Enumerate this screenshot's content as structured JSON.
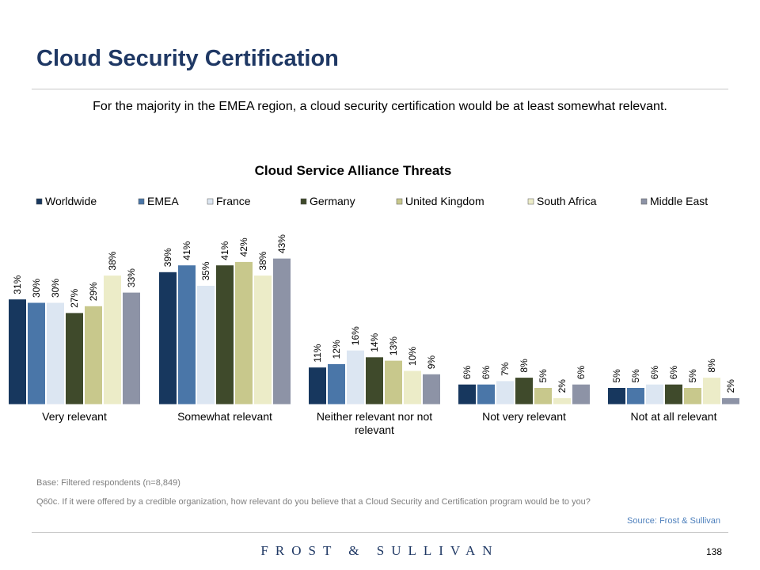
{
  "header": {
    "title": "Cloud Security Certification",
    "subtitle": "For the majority in the EMEA region, a cloud security certification would be at least somewhat relevant."
  },
  "chart_data": {
    "type": "bar",
    "title": "Cloud Service Alliance Threats",
    "xlabel": "",
    "ylabel": "",
    "ylim": [
      0,
      45
    ],
    "grid": false,
    "legend_position": "top",
    "categories": [
      "Very relevant",
      "Somewhat relevant",
      "Neither relevant nor not relevant",
      "Not very relevant",
      "Not at all relevant"
    ],
    "series": [
      {
        "name": "Worldwide",
        "color": "#17375e",
        "values": [
          31,
          39,
          11,
          6,
          5
        ],
        "labels": [
          "31%",
          "39%",
          "11%",
          "6%",
          "5%"
        ]
      },
      {
        "name": "EMEA",
        "color": "#4a76a8",
        "values": [
          30,
          41,
          12,
          6,
          5
        ],
        "labels": [
          "30%",
          "41%",
          "12%",
          "6%",
          "5%"
        ]
      },
      {
        "name": "France",
        "color": "#dce6f2",
        "values": [
          30,
          35,
          16,
          7,
          6
        ],
        "labels": [
          "30%",
          "35%",
          "16%",
          "7%",
          "6%"
        ]
      },
      {
        "name": "Germany",
        "color": "#3f4a2b",
        "values": [
          27,
          41,
          14,
          8,
          6
        ],
        "labels": [
          "27%",
          "41%",
          "14%",
          "8%",
          "6%"
        ]
      },
      {
        "name": "United Kingdom",
        "color": "#c8c88c",
        "values": [
          29,
          42,
          13,
          5,
          5
        ],
        "labels": [
          "29%",
          "42%",
          "13%",
          "5%",
          "5%"
        ]
      },
      {
        "name": "South Africa",
        "color": "#ececc8",
        "values": [
          38,
          38,
          10,
          2,
          8
        ],
        "labels": [
          "38%",
          "38%",
          "10%",
          "2%",
          "8%"
        ]
      },
      {
        "name": "Middle East",
        "color": "#8d93a6",
        "values": [
          33,
          43,
          9,
          6,
          2
        ],
        "labels": [
          "33%",
          "43%",
          "9%",
          "6%",
          "2%"
        ]
      }
    ]
  },
  "footer": {
    "base": "Base: Filtered respondents (n=8,849)",
    "question": "Q60c. If it were offered by a credible organization, how relevant do you believe that a Cloud Security and Certification program would be to you?",
    "source": "Source: Frost & Sullivan",
    "logo": "FROST & SULLIVAN",
    "page_number": "138"
  }
}
